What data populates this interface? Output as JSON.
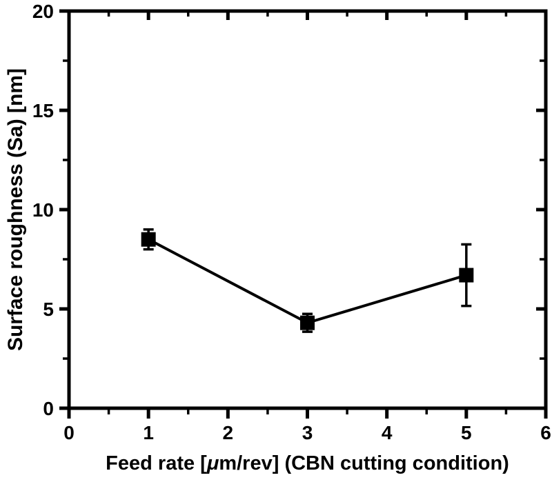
{
  "chart_data": {
    "type": "line",
    "title": "",
    "xlabel": "Feed rate [μm/rev] (CBN cutting condition)",
    "xlabel_parts": {
      "prefix": "Feed rate [",
      "mu": "μ",
      "suffix": "m/rev] (CBN cutting condition)"
    },
    "ylabel": "Surface roughness (Sa) [nm]",
    "xlim": [
      0,
      6
    ],
    "ylim": [
      0,
      20
    ],
    "x_major_ticks": [
      0,
      1,
      2,
      3,
      4,
      5,
      6
    ],
    "x_minor_step": 0.5,
    "y_major_ticks": [
      0,
      5,
      10,
      15,
      20
    ],
    "y_minor_step": 2.5,
    "grid": false,
    "legend_position": "none",
    "series": [
      {
        "name": "Surface roughness (Sa)",
        "marker": "filled-square",
        "line_style": "solid",
        "color": "#000000",
        "points": [
          {
            "x": 1,
            "y": 8.5,
            "yerr": 0.5
          },
          {
            "x": 3,
            "y": 4.3,
            "yerr": 0.45
          },
          {
            "x": 5,
            "y": 6.7,
            "yerr": 1.55
          }
        ]
      }
    ]
  },
  "styles": {
    "background": "#ffffff",
    "axis_color": "#000000",
    "marker_color": "#000000",
    "line_color": "#000000"
  }
}
